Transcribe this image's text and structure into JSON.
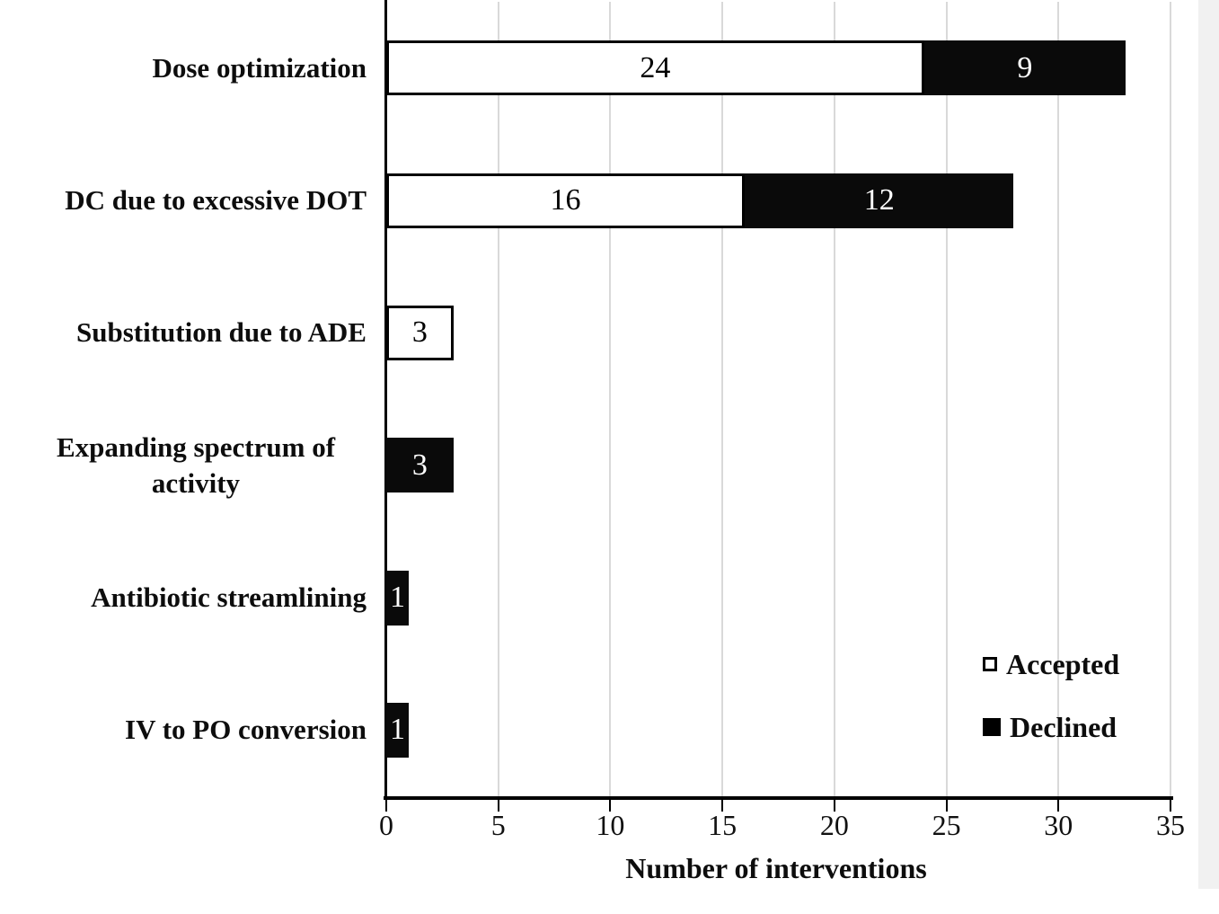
{
  "chart_data": {
    "type": "bar",
    "orientation": "horizontal",
    "stacked": true,
    "title": "",
    "xlabel": "Number of interventions",
    "ylabel": "",
    "xlim": [
      0,
      35
    ],
    "x_ticks": [
      "0",
      "5",
      "10",
      "15",
      "20",
      "25",
      "30",
      "35"
    ],
    "grid": "vertical-gridlines-every-5",
    "categories": [
      "Dose optimization",
      "DC due to excessive DOT",
      "Substitution due to ADE",
      "Expanding spectrum of activity",
      "Antibiotic streamlining",
      "IV to PO conversion"
    ],
    "series": [
      {
        "name": "Accepted",
        "values": [
          24,
          16,
          3,
          0,
          0,
          0
        ]
      },
      {
        "name": "Declined",
        "values": [
          9,
          12,
          0,
          3,
          1,
          1
        ]
      }
    ],
    "totals": [
      33,
      28,
      3,
      3,
      1,
      1
    ],
    "legend": {
      "position": "inside-right-bottom",
      "entries": [
        {
          "label": "Accepted",
          "swatch": "white-outline-square"
        },
        {
          "label": "Declined",
          "swatch": "black-filled-square"
        }
      ]
    }
  },
  "colors": {
    "accepted_fill": "#ffffff",
    "declined_fill": "#0a0a0a",
    "bar_border": "#000000",
    "gridline": "#d9d9d9",
    "axis": "#000000",
    "text": "#0d0d0d",
    "background": "#ffffff",
    "edge_strip": "#f1f1f1"
  }
}
